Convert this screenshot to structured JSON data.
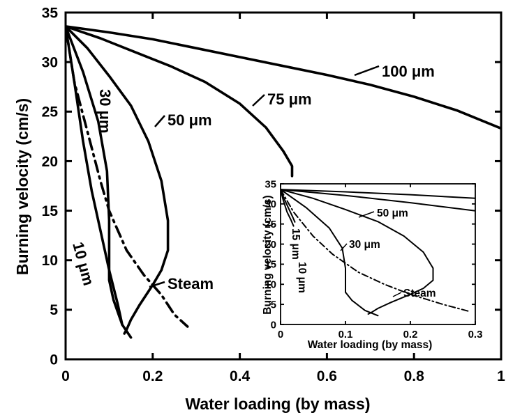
{
  "chart_data": [
    {
      "type": "line",
      "title": "",
      "xlabel": "Water loading (by mass)",
      "ylabel": "Burning velocity (cm/s)",
      "xlim": [
        0,
        1
      ],
      "ylim": [
        0,
        35
      ],
      "xticks": [
        "0",
        "0.2",
        "0.4",
        "0.6",
        "0.8",
        "1"
      ],
      "yticks": [
        "0",
        "5",
        "10",
        "15",
        "20",
        "25",
        "30",
        "35"
      ],
      "grid": false,
      "legend": "none",
      "series": [
        {
          "name": "100 μm",
          "style": "solid",
          "x": [
            0,
            0.1,
            0.2,
            0.3,
            0.4,
            0.5,
            0.6,
            0.7,
            0.8,
            0.9,
            1.0
          ],
          "y": [
            33.6,
            33.0,
            32.3,
            31.4,
            30.5,
            29.6,
            28.7,
            27.7,
            26.5,
            25.1,
            23.3
          ]
        },
        {
          "name": "75 μm",
          "style": "solid",
          "x": [
            0,
            0.08,
            0.16,
            0.24,
            0.32,
            0.4,
            0.46,
            0.5,
            0.52,
            0.52
          ],
          "y": [
            33.6,
            32.4,
            31.0,
            29.6,
            28.0,
            25.8,
            23.4,
            21.0,
            19.5,
            18.5
          ]
        },
        {
          "name": "50 μm",
          "style": "solid",
          "x": [
            0,
            0.05,
            0.1,
            0.15,
            0.19,
            0.22,
            0.235,
            0.235,
            0.22,
            0.2,
            0.17,
            0.15,
            0.14,
            0.135
          ],
          "y": [
            33.6,
            31.4,
            28.6,
            25.6,
            22.0,
            18.0,
            14.0,
            11.0,
            9.0,
            7.5,
            5.5,
            4.0,
            3.0,
            2.6
          ]
        },
        {
          "name": "30 μm",
          "style": "solid",
          "x": [
            0,
            0.04,
            0.075,
            0.095,
            0.1,
            0.1,
            0.1,
            0.11,
            0.13,
            0.15
          ],
          "y": [
            33.6,
            29.0,
            24.0,
            19.0,
            14.0,
            10.0,
            8.0,
            6.0,
            3.5,
            2.2
          ]
        },
        {
          "name": "10 μm",
          "style": "solid",
          "x": [
            0,
            0.02,
            0.04,
            0.06,
            0.08,
            0.1,
            0.12,
            0.13
          ],
          "y": [
            33.6,
            28.0,
            22.0,
            17.0,
            13.0,
            9.0,
            5.5,
            3.5
          ]
        },
        {
          "name": "Steam",
          "style": "dash-dot",
          "x": [
            0,
            0.02,
            0.05,
            0.08,
            0.1,
            0.14,
            0.18,
            0.22,
            0.25,
            0.28
          ],
          "y": [
            33.6,
            28.0,
            23.0,
            18.0,
            15.0,
            11.0,
            8.5,
            6.5,
            4.5,
            3.3
          ]
        }
      ],
      "labels": [
        {
          "text": "100 μm",
          "series": "100 μm"
        },
        {
          "text": "75 μm",
          "series": "75 μm"
        },
        {
          "text": "50 μm",
          "series": "50 μm"
        },
        {
          "text": "30 μm",
          "series": "30 μm"
        },
        {
          "text": "10 μm",
          "series": "10 μm"
        },
        {
          "text": "Steam",
          "series": "Steam"
        }
      ]
    },
    {
      "type": "line",
      "title": "",
      "placement": "inset lower-right",
      "xlabel": "Water loading (by mass)",
      "ylabel": "Burning velocity (cm/s)",
      "xlim": [
        0,
        0.3
      ],
      "ylim": [
        0,
        35
      ],
      "xticks": [
        "0",
        "0.1",
        "0.2",
        "0.3"
      ],
      "yticks": [
        "0",
        "5",
        "10",
        "15",
        "20",
        "25",
        "30",
        "35"
      ],
      "grid": false,
      "legend": "none",
      "series": [
        {
          "name": "100 μm",
          "style": "solid",
          "x": [
            0,
            0.1,
            0.2,
            0.3
          ],
          "y": [
            33.6,
            33.0,
            32.3,
            31.4
          ]
        },
        {
          "name": "75 μm",
          "style": "solid",
          "x": [
            0,
            0.1,
            0.2,
            0.3
          ],
          "y": [
            33.6,
            32.1,
            30.3,
            28.3
          ]
        },
        {
          "name": "50 μm",
          "style": "solid",
          "x": [
            0,
            0.05,
            0.1,
            0.15,
            0.19,
            0.22,
            0.235,
            0.235,
            0.22,
            0.2,
            0.17,
            0.15,
            0.14,
            0.135
          ],
          "y": [
            33.6,
            31.4,
            28.6,
            25.6,
            22.0,
            18.0,
            14.0,
            11.0,
            9.0,
            7.5,
            5.5,
            4.0,
            3.0,
            2.6
          ]
        },
        {
          "name": "30 μm",
          "style": "solid",
          "x": [
            0,
            0.04,
            0.075,
            0.095,
            0.1,
            0.1,
            0.1,
            0.11,
            0.13,
            0.15
          ],
          "y": [
            33.6,
            29.0,
            24.0,
            19.0,
            14.0,
            10.0,
            8.0,
            6.0,
            3.5,
            2.2
          ]
        },
        {
          "name": "15 μm",
          "style": "solid",
          "x": [
            0,
            0.005,
            0.012,
            0.018,
            0.022
          ],
          "y": [
            33.6,
            31.5,
            29.0,
            27.0,
            25.5
          ]
        },
        {
          "name": "10 μm",
          "style": "solid",
          "x": [
            0,
            0.004,
            0.01,
            0.016,
            0.02
          ],
          "y": [
            33.6,
            31.0,
            28.0,
            26.0,
            24.5
          ]
        },
        {
          "name": "Steam",
          "style": "dash-dot",
          "x": [
            0,
            0.02,
            0.05,
            0.08,
            0.12,
            0.16,
            0.2,
            0.25,
            0.29
          ],
          "y": [
            33.6,
            28.0,
            22.0,
            17.5,
            13.0,
            10.0,
            7.5,
            5.0,
            3.3
          ]
        }
      ],
      "labels": [
        {
          "text": "50 μm",
          "series": "50 μm"
        },
        {
          "text": "30 μm",
          "series": "30 μm"
        },
        {
          "text": "15 μm",
          "series": "15 μm"
        },
        {
          "text": "10 μm",
          "series": "10 μm"
        },
        {
          "text": "Steam",
          "series": "Steam"
        }
      ]
    }
  ]
}
